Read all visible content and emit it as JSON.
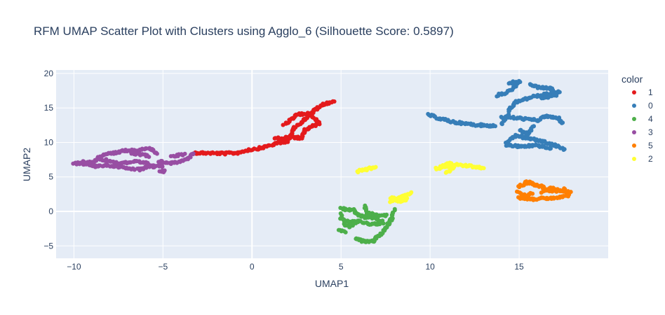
{
  "chart_data": {
    "type": "scatter",
    "title": "RFM UMAP Scatter Plot with Clusters using Agglo_6 (Silhouette Score: 0.5897)",
    "xlabel": "UMAP1",
    "ylabel": "UMAP2",
    "xlim": [
      -11,
      20
    ],
    "ylim": [
      -6.8,
      20.5
    ],
    "xticks": [
      -10,
      -5,
      0,
      5,
      10,
      15
    ],
    "yticks": [
      -5,
      0,
      5,
      10,
      15,
      20
    ],
    "grid": true,
    "legend": {
      "title": "color",
      "placement": "right"
    },
    "series": [
      {
        "name": "1",
        "color": "#e41a1c",
        "segments": [
          [
            [
              -3.2,
              8.5
            ],
            [
              -1.5,
              8.4
            ],
            [
              -0.8,
              8.5
            ],
            [
              -0.2,
              8.9
            ],
            [
              0.5,
              9.2
            ],
            [
              1.2,
              9.7
            ],
            [
              2.0,
              10.2
            ],
            [
              2.2,
              11.0
            ],
            [
              2.3,
              12.0
            ],
            [
              2.8,
              13.0
            ],
            [
              3.2,
              14.0
            ],
            [
              3.6,
              14.8
            ],
            [
              4.0,
              15.5
            ],
            [
              4.6,
              16.0
            ]
          ],
          [
            [
              1.3,
              10.5
            ],
            [
              2.2,
              10.8
            ],
            [
              2.8,
              10.6
            ],
            [
              3.0,
              11.8
            ],
            [
              3.8,
              12.8
            ],
            [
              3.2,
              14.2
            ],
            [
              2.5,
              14.0
            ],
            [
              1.8,
              12.5
            ]
          ]
        ]
      },
      {
        "name": "0",
        "color": "#377eb8",
        "segments": [
          [
            [
              9.9,
              14.0
            ],
            [
              10.5,
              13.5
            ],
            [
              11.2,
              13.0
            ],
            [
              12.0,
              12.7
            ],
            [
              12.8,
              12.5
            ],
            [
              13.6,
              12.4
            ]
          ],
          [
            [
              14.0,
              13.7
            ],
            [
              15.0,
              13.5
            ],
            [
              16.0,
              13.2
            ],
            [
              16.5,
              13.8
            ],
            [
              17.2,
              13.5
            ],
            [
              17.5,
              12.8
            ]
          ],
          [
            [
              14.0,
              12.6
            ],
            [
              14.3,
              13.7
            ],
            [
              14.5,
              14.8
            ],
            [
              14.8,
              15.8
            ],
            [
              15.6,
              16.5
            ],
            [
              16.5,
              17.0
            ],
            [
              17.3,
              17.3
            ]
          ],
          [
            [
              13.8,
              16.8
            ],
            [
              14.5,
              17.5
            ],
            [
              15.0,
              18.8
            ],
            [
              14.4,
              18.6
            ]
          ],
          [
            [
              14.3,
              10.0
            ],
            [
              14.8,
              11.0
            ],
            [
              15.5,
              10.6
            ],
            [
              16.3,
              10.2
            ],
            [
              17.0,
              9.6
            ],
            [
              17.5,
              9.0
            ]
          ],
          [
            [
              14.3,
              9.6
            ],
            [
              15.0,
              9.4
            ],
            [
              16.0,
              9.6
            ],
            [
              16.8,
              9.1
            ]
          ],
          [
            [
              15.0,
              11.8
            ],
            [
              15.5,
              11.2
            ],
            [
              15.8,
              12.4
            ]
          ],
          [
            [
              15.6,
              18.5
            ],
            [
              16.0,
              18.0
            ],
            [
              16.8,
              17.8
            ],
            [
              17.1,
              16.8
            ],
            [
              16.2,
              16.5
            ]
          ]
        ]
      },
      {
        "name": "4",
        "color": "#4daf4a",
        "segments": [
          [
            [
              5.0,
              0.4
            ],
            [
              5.7,
              0.2
            ],
            [
              5.9,
              -0.4
            ],
            [
              6.4,
              -0.9
            ],
            [
              6.9,
              -1.0
            ],
            [
              7.3,
              -1.5
            ]
          ],
          [
            [
              5.0,
              -1.0
            ],
            [
              5.5,
              -1.6
            ],
            [
              6.0,
              -1.4
            ],
            [
              6.5,
              -1.8
            ],
            [
              7.0,
              -1.8
            ],
            [
              7.4,
              -1.7
            ]
          ],
          [
            [
              5.0,
              -0.4
            ],
            [
              5.2,
              -1.9
            ],
            [
              5.5,
              -2.2
            ],
            [
              5.9,
              -1.6
            ]
          ],
          [
            [
              5.8,
              -3.8
            ],
            [
              6.2,
              -4.3
            ],
            [
              6.8,
              -4.4
            ],
            [
              7.0,
              -3.8
            ],
            [
              7.4,
              -2.8
            ],
            [
              7.8,
              -1.2
            ],
            [
              8.0,
              0.2
            ]
          ],
          [
            [
              6.3,
              0.8
            ],
            [
              6.5,
              -0.3
            ],
            [
              7.0,
              -0.5
            ],
            [
              7.5,
              -0.6
            ]
          ],
          [
            [
              4.9,
              -2.7
            ],
            [
              5.2,
              -3.0
            ]
          ]
        ]
      },
      {
        "name": "3",
        "color": "#984ea3",
        "segments": [
          [
            [
              -10.0,
              7.0
            ],
            [
              -9.4,
              6.9
            ],
            [
              -8.8,
              7.3
            ],
            [
              -8.5,
              8.0
            ],
            [
              -8.0,
              8.4
            ],
            [
              -7.5,
              8.6
            ]
          ],
          [
            [
              -9.5,
              7.2
            ],
            [
              -8.8,
              6.5
            ],
            [
              -8.2,
              6.7
            ],
            [
              -7.5,
              6.5
            ],
            [
              -7.0,
              6.2
            ],
            [
              -6.3,
              6.1
            ],
            [
              -5.8,
              6.5
            ]
          ],
          [
            [
              -8.5,
              7.6
            ],
            [
              -7.5,
              7.0
            ],
            [
              -6.5,
              7.2
            ],
            [
              -6.0,
              7.0
            ],
            [
              -5.5,
              6.5
            ],
            [
              -5.0,
              6.6
            ]
          ],
          [
            [
              -7.5,
              8.8
            ],
            [
              -6.5,
              8.8
            ],
            [
              -6.0,
              9.2
            ],
            [
              -5.6,
              9.0
            ],
            [
              -5.3,
              8.3
            ]
          ],
          [
            [
              -6.8,
              8.5
            ],
            [
              -6.3,
              8.3
            ],
            [
              -5.8,
              8.0
            ]
          ],
          [
            [
              -5.2,
              7.3
            ],
            [
              -4.5,
              7.0
            ],
            [
              -4.0,
              7.3
            ],
            [
              -3.5,
              7.8
            ],
            [
              -3.3,
              8.4
            ]
          ],
          [
            [
              -4.5,
              8.0
            ],
            [
              -3.8,
              8.2
            ]
          ],
          [
            [
              -5.2,
              5.7
            ],
            [
              -4.9,
              5.9
            ]
          ]
        ]
      },
      {
        "name": "5",
        "color": "#ff7f00",
        "segments": [
          [
            [
              15.0,
              3.6
            ],
            [
              15.5,
              4.2
            ],
            [
              16.2,
              3.6
            ],
            [
              16.8,
              3.0
            ],
            [
              17.5,
              3.0
            ],
            [
              17.9,
              2.8
            ]
          ],
          [
            [
              15.0,
              2.0
            ],
            [
              15.8,
              1.8
            ],
            [
              16.5,
              1.9
            ],
            [
              17.2,
              2.0
            ],
            [
              17.7,
              2.2
            ],
            [
              17.8,
              2.6
            ]
          ],
          [
            [
              14.9,
              2.8
            ],
            [
              15.3,
              2.3
            ],
            [
              15.7,
              2.6
            ]
          ],
          [
            [
              16.3,
              2.8
            ],
            [
              16.8,
              3.4
            ],
            [
              17.3,
              3.0
            ],
            [
              17.6,
              3.3
            ]
          ],
          [
            [
              15.3,
              4.4
            ],
            [
              15.8,
              4.0
            ]
          ]
        ]
      },
      {
        "name": "2",
        "color": "#ffff33",
        "segments": [
          [
            [
              5.9,
              5.8
            ],
            [
              6.4,
              6.1
            ],
            [
              7.0,
              6.5
            ]
          ],
          [
            [
              7.7,
              1.4
            ],
            [
              8.2,
              1.9
            ],
            [
              8.6,
              2.3
            ],
            [
              9.0,
              2.7
            ]
          ],
          [
            [
              7.8,
              2.0
            ],
            [
              8.3,
              1.5
            ],
            [
              8.7,
              1.8
            ]
          ],
          [
            [
              10.3,
              6.2
            ],
            [
              11.0,
              6.6
            ],
            [
              11.5,
              6.9
            ],
            [
              12.0,
              6.6
            ],
            [
              12.5,
              6.5
            ],
            [
              13.0,
              6.3
            ]
          ],
          [
            [
              10.9,
              5.6
            ],
            [
              11.4,
              6.4
            ]
          ],
          [
            [
              10.6,
              6.5
            ],
            [
              11.2,
              7.0
            ]
          ]
        ]
      }
    ]
  }
}
